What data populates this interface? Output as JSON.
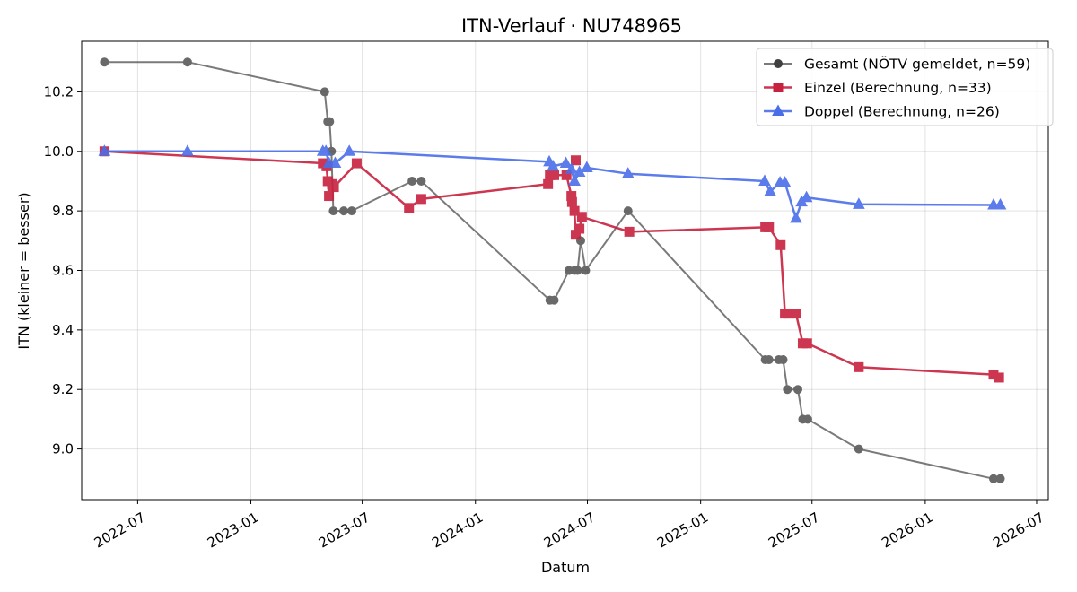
{
  "chart_data": {
    "type": "line",
    "title": "ITN-Verlauf · NU748965",
    "xlabel": "Datum",
    "ylabel": "ITN  (kleiner = besser)",
    "x_axis": "date",
    "xlim": [
      "2022-04-01",
      "2026-07-20"
    ],
    "ylim": [
      8.83,
      10.37
    ],
    "x_ticks": [
      "2022-07-01",
      "2023-01-01",
      "2023-07-01",
      "2024-01-01",
      "2024-07-01",
      "2025-01-01",
      "2025-07-01",
      "2026-01-01",
      "2026-07-01"
    ],
    "x_tick_labels": [
      "2022-07",
      "2023-01",
      "2023-07",
      "2024-01",
      "2024-07",
      "2025-01",
      "2025-07",
      "2026-01",
      "2026-07"
    ],
    "y_ticks": [
      9.0,
      9.2,
      9.4,
      9.6,
      9.8,
      10.0,
      10.2
    ],
    "y_tick_labels": [
      "9.0",
      "9.2",
      "9.4",
      "9.6",
      "9.8",
      "10.0",
      "10.2"
    ],
    "grid": true,
    "legend_position": "top-right",
    "series": [
      {
        "name": "Gesamt (NÖTV gemeldet, n=59)",
        "color": "#555555",
        "marker": "circle",
        "points": [
          [
            "2022-05-08",
            10.3
          ],
          [
            "2022-09-20",
            10.3
          ],
          [
            "2023-05-01",
            10.2
          ],
          [
            "2023-05-06",
            10.1
          ],
          [
            "2023-05-09",
            10.1
          ],
          [
            "2023-05-12",
            10.0
          ],
          [
            "2023-05-15",
            9.8
          ],
          [
            "2023-06-01",
            9.8
          ],
          [
            "2023-06-14",
            9.8
          ],
          [
            "2023-09-20",
            9.9
          ],
          [
            "2023-10-05",
            9.9
          ],
          [
            "2024-05-01",
            9.5
          ],
          [
            "2024-05-08",
            9.5
          ],
          [
            "2024-06-01",
            9.6
          ],
          [
            "2024-06-10",
            9.6
          ],
          [
            "2024-06-15",
            9.6
          ],
          [
            "2024-06-20",
            9.7
          ],
          [
            "2024-06-28",
            9.6
          ],
          [
            "2024-09-05",
            9.8
          ],
          [
            "2025-04-16",
            9.3
          ],
          [
            "2025-04-22",
            9.3
          ],
          [
            "2025-05-08",
            9.3
          ],
          [
            "2025-05-15",
            9.3
          ],
          [
            "2025-05-22",
            9.2
          ],
          [
            "2025-06-08",
            9.2
          ],
          [
            "2025-06-16",
            9.1
          ],
          [
            "2025-06-24",
            9.1
          ],
          [
            "2025-09-15",
            9.0
          ],
          [
            "2026-04-22",
            8.9
          ],
          [
            "2026-05-03",
            8.9
          ]
        ]
      },
      {
        "name": "Einzel (Berechnung, n=33)",
        "color": "#c8213f",
        "marker": "square",
        "points": [
          [
            "2022-05-08",
            10.0
          ],
          [
            "2023-04-28",
            9.96
          ],
          [
            "2023-05-04",
            9.95
          ],
          [
            "2023-05-06",
            9.9
          ],
          [
            "2023-05-08",
            9.85
          ],
          [
            "2023-05-13",
            9.89
          ],
          [
            "2023-05-16",
            9.88
          ],
          [
            "2023-06-22",
            9.96
          ],
          [
            "2023-09-15",
            9.81
          ],
          [
            "2023-10-05",
            9.84
          ],
          [
            "2024-04-28",
            9.89
          ],
          [
            "2024-05-01",
            9.92
          ],
          [
            "2024-05-08",
            9.92
          ],
          [
            "2024-05-28",
            9.92
          ],
          [
            "2024-06-05",
            9.85
          ],
          [
            "2024-06-06",
            9.83
          ],
          [
            "2024-06-10",
            9.8
          ],
          [
            "2024-06-12",
            9.72
          ],
          [
            "2024-06-18",
            9.74
          ],
          [
            "2024-06-22",
            9.78
          ],
          [
            "2024-09-07",
            9.73
          ],
          [
            "2025-04-16",
            9.745
          ],
          [
            "2025-04-22",
            9.745
          ],
          [
            "2025-05-11",
            9.685
          ],
          [
            "2025-05-18",
            9.455
          ],
          [
            "2025-05-25",
            9.455
          ],
          [
            "2025-06-05",
            9.455
          ],
          [
            "2025-06-16",
            9.355
          ],
          [
            "2025-06-23",
            9.355
          ],
          [
            "2025-09-15",
            9.275
          ],
          [
            "2026-04-22",
            9.25
          ],
          [
            "2026-05-01",
            9.24
          ]
        ],
        "extra_points": [
          [
            "2024-06-12",
            9.97
          ]
        ]
      },
      {
        "name": "Doppel (Berechnung, n=26)",
        "color": "#4a6ee8",
        "marker": "triangle",
        "points": [
          [
            "2022-05-08",
            10.0
          ],
          [
            "2022-09-20",
            10.0
          ],
          [
            "2023-04-28",
            10.0
          ],
          [
            "2023-05-03",
            10.0
          ],
          [
            "2023-05-08",
            9.96
          ],
          [
            "2023-05-18",
            9.96
          ],
          [
            "2023-06-10",
            10.0
          ],
          [
            "2024-04-30",
            9.965
          ],
          [
            "2024-05-06",
            9.95
          ],
          [
            "2024-05-27",
            9.96
          ],
          [
            "2024-06-05",
            9.94
          ],
          [
            "2024-06-10",
            9.9
          ],
          [
            "2024-06-18",
            9.93
          ],
          [
            "2024-06-30",
            9.945
          ],
          [
            "2024-09-05",
            9.925
          ],
          [
            "2025-04-15",
            9.9
          ],
          [
            "2025-04-24",
            9.865
          ],
          [
            "2025-05-10",
            9.895
          ],
          [
            "2025-05-18",
            9.895
          ],
          [
            "2025-06-05",
            9.775
          ],
          [
            "2025-06-14",
            9.83
          ],
          [
            "2025-06-22",
            9.845
          ],
          [
            "2025-09-15",
            9.822
          ],
          [
            "2026-04-22",
            9.82
          ],
          [
            "2026-05-03",
            9.82
          ]
        ]
      }
    ]
  }
}
